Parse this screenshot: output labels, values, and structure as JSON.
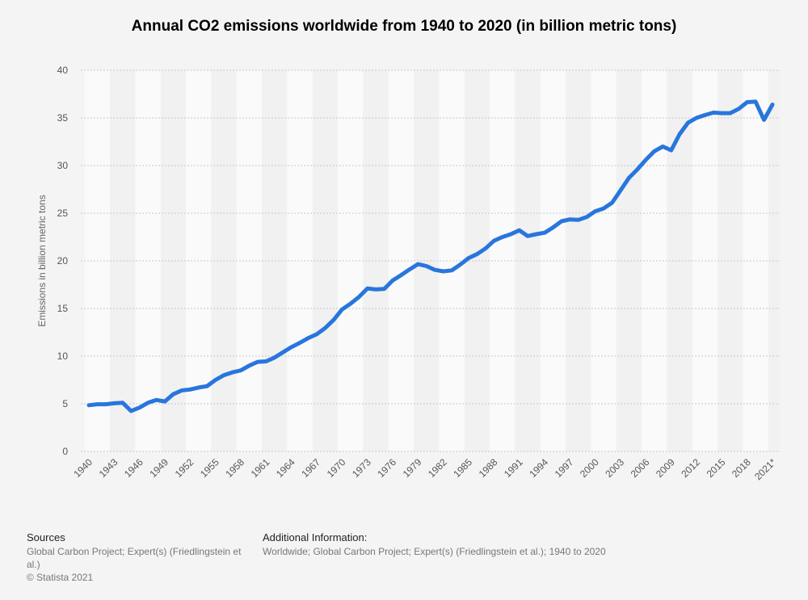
{
  "chart_data": {
    "type": "line",
    "title": "Annual CO2 emissions worldwide from 1940 to 2020 (in billion metric tons)",
    "xlabel": "",
    "ylabel": "Emissions in billion metric tons",
    "ylim": [
      0,
      40
    ],
    "yticks": [
      0,
      5,
      10,
      15,
      20,
      25,
      30,
      35,
      40
    ],
    "grid": true,
    "legend": "none",
    "line_color": "#2876dd",
    "x": [
      1940,
      1941,
      1942,
      1943,
      1944,
      1945,
      1946,
      1947,
      1948,
      1949,
      1950,
      1951,
      1952,
      1953,
      1954,
      1955,
      1956,
      1957,
      1958,
      1959,
      1960,
      1961,
      1962,
      1963,
      1964,
      1965,
      1966,
      1967,
      1968,
      1969,
      1970,
      1971,
      1972,
      1973,
      1974,
      1975,
      1976,
      1977,
      1978,
      1979,
      1980,
      1981,
      1982,
      1983,
      1984,
      1985,
      1986,
      1987,
      1988,
      1989,
      1990,
      1991,
      1992,
      1993,
      1994,
      1995,
      1996,
      1997,
      1998,
      1999,
      2000,
      2001,
      2002,
      2003,
      2004,
      2005,
      2006,
      2007,
      2008,
      2009,
      2010,
      2011,
      2012,
      2013,
      2014,
      2015,
      2016,
      2017,
      2018,
      2019,
      2020,
      2021
    ],
    "values": [
      4.85,
      4.95,
      4.95,
      5.05,
      5.1,
      4.25,
      4.6,
      5.1,
      5.4,
      5.25,
      6.0,
      6.4,
      6.5,
      6.7,
      6.85,
      7.5,
      8.0,
      8.3,
      8.5,
      9.0,
      9.4,
      9.45,
      9.85,
      10.4,
      10.95,
      11.4,
      11.9,
      12.3,
      12.95,
      13.8,
      14.9,
      15.5,
      16.2,
      17.1,
      17.0,
      17.05,
      17.95,
      18.5,
      19.1,
      19.65,
      19.45,
      19.05,
      18.9,
      19.0,
      19.6,
      20.3,
      20.7,
      21.3,
      22.1,
      22.5,
      22.8,
      23.2,
      22.6,
      22.8,
      22.95,
      23.5,
      24.15,
      24.35,
      24.3,
      24.6,
      25.2,
      25.5,
      26.1,
      27.4,
      28.7,
      29.6,
      30.6,
      31.5,
      32.0,
      31.6,
      33.3,
      34.5,
      35.0,
      35.3,
      35.55,
      35.5,
      35.5,
      35.95,
      36.65,
      36.7,
      34.8,
      36.4
    ],
    "xtick_labels": [
      "1940",
      "1943",
      "1946",
      "1949",
      "1952",
      "1955",
      "1958",
      "1961",
      "1964",
      "1967",
      "1970",
      "1973",
      "1976",
      "1979",
      "1982",
      "1985",
      "1988",
      "1991",
      "1994",
      "1997",
      "2000",
      "2003",
      "2006",
      "2009",
      "2012",
      "2015",
      "2018",
      "2021*"
    ]
  },
  "footer": {
    "sources_heading": "Sources",
    "sources_text": "Global Carbon Project; Expert(s) (Friedlingstein et al.)",
    "copyright": "© Statista 2021",
    "additional_heading": "Additional Information:",
    "additional_text": "Worldwide; Global Carbon Project; Expert(s) (Friedlingstein et al.); 1940 to 2020"
  }
}
